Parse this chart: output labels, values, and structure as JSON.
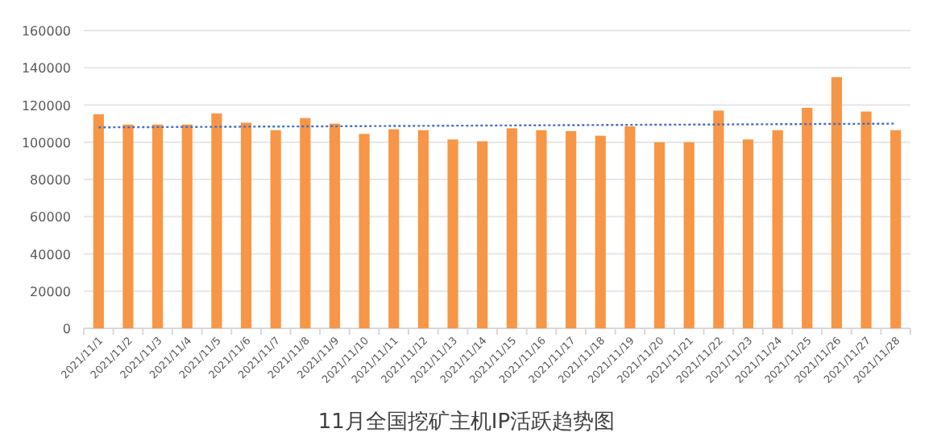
{
  "chart_data": {
    "type": "bar",
    "title": "11月全国挖矿主机IP活跃趋势图",
    "categories": [
      "2021/11/1",
      "2021/11/2",
      "2021/11/3",
      "2021/11/4",
      "2021/11/5",
      "2021/11/6",
      "2021/11/7",
      "2021/11/8",
      "2021/11/9",
      "2021/11/10",
      "2021/11/11",
      "2021/11/12",
      "2021/11/13",
      "2021/11/14",
      "2021/11/15",
      "2021/11/16",
      "2021/11/17",
      "2021/11/18",
      "2021/11/19",
      "2021/11/20",
      "2021/11/21",
      "2021/11/22",
      "2021/11/23",
      "2021/11/24",
      "2021/11/25",
      "2021/11/26",
      "2021/11/27",
      "2021/11/28"
    ],
    "series": [
      {
        "color": "#f79646",
        "values": [
          115000,
          109500,
          109500,
          109500,
          115500,
          110500,
          106500,
          113000,
          110000,
          104500,
          107000,
          106500,
          101500,
          100500,
          107500,
          106500,
          106000,
          103500,
          108500,
          100000,
          100000,
          117000,
          101500,
          106500,
          118500,
          135000,
          116500,
          106500
        ]
      },
      {
        "type": "line",
        "color": "#4472c4",
        "line_style": "dotted",
        "x": [
          "2021/11/1",
          "2021/11/28"
        ],
        "values": [
          108000,
          110000
        ]
      }
    ],
    "ylim": [
      0,
      160000
    ],
    "yticks": [
      0,
      20000,
      40000,
      60000,
      80000,
      100000,
      120000,
      140000,
      160000
    ],
    "grid": "y"
  }
}
